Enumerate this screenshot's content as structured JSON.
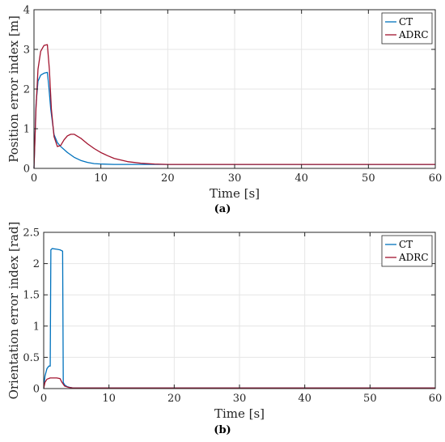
{
  "chart_data": [
    {
      "type": "line",
      "xlabel": "Time [s]",
      "ylabel": "Position error index [m]",
      "caption": "(a)",
      "xlim": [
        0,
        60
      ],
      "ylim": [
        0,
        4
      ],
      "xticks": [
        0,
        10,
        20,
        30,
        40,
        50,
        60
      ],
      "yticks": [
        0,
        1,
        2,
        3,
        4
      ],
      "grid": true,
      "legend_position": "top-right",
      "series": [
        {
          "name": "CT",
          "color": "#0072bd",
          "x": [
            0,
            0.3,
            0.6,
            1.0,
            1.5,
            2.0,
            2.2,
            2.5,
            3.0,
            3.5,
            4.0,
            5.0,
            6.0,
            7.0,
            8.0,
            9.0,
            10.0,
            12.0,
            15.0,
            18.0,
            20.0,
            30.0,
            40.0,
            50.0,
            60.0
          ],
          "y": [
            0,
            1.6,
            2.2,
            2.35,
            2.4,
            2.42,
            2.1,
            1.5,
            0.85,
            0.65,
            0.55,
            0.4,
            0.28,
            0.2,
            0.15,
            0.12,
            0.11,
            0.1,
            0.1,
            0.1,
            0.1,
            0.1,
            0.1,
            0.1,
            0.1
          ]
        },
        {
          "name": "ADRC",
          "color": "#a2142f",
          "x": [
            0,
            0.3,
            0.6,
            1.0,
            1.5,
            2.0,
            2.3,
            2.6,
            3.0,
            3.5,
            4.0,
            4.5,
            5.0,
            5.5,
            6.0,
            7.0,
            8.0,
            9.0,
            10.0,
            11.0,
            12.0,
            14.0,
            16.0,
            18.0,
            20.0,
            30.0,
            40.0,
            50.0,
            60.0
          ],
          "y": [
            0,
            1.5,
            2.5,
            2.95,
            3.1,
            3.12,
            2.5,
            1.5,
            0.8,
            0.55,
            0.58,
            0.72,
            0.82,
            0.86,
            0.86,
            0.76,
            0.62,
            0.5,
            0.4,
            0.32,
            0.25,
            0.17,
            0.13,
            0.11,
            0.1,
            0.1,
            0.1,
            0.1,
            0.1
          ]
        }
      ]
    },
    {
      "type": "line",
      "xlabel": "Time [s]",
      "ylabel": "Orientation error index [rad]",
      "caption": "(b)",
      "xlim": [
        0,
        60
      ],
      "ylim": [
        0,
        2.5
      ],
      "xticks": [
        0,
        10,
        20,
        30,
        40,
        50,
        60
      ],
      "yticks": [
        0,
        0.5,
        1,
        1.5,
        2,
        2.5
      ],
      "grid": true,
      "legend_position": "top-right",
      "series": [
        {
          "name": "CT",
          "color": "#0072bd",
          "x": [
            0,
            0.2,
            0.5,
            0.8,
            1.0,
            1.1,
            1.3,
            2.0,
            2.5,
            2.9,
            3.0,
            3.2,
            3.6,
            4.0,
            4.5,
            5.0,
            60.0
          ],
          "y": [
            0,
            0.2,
            0.32,
            0.36,
            0.36,
            2.22,
            2.24,
            2.23,
            2.22,
            2.2,
            0.1,
            0.06,
            0.03,
            0.02,
            0.01,
            0.01,
            0.01
          ]
        },
        {
          "name": "ADRC",
          "color": "#a2142f",
          "x": [
            0,
            0.2,
            0.5,
            1.0,
            1.5,
            2.0,
            2.5,
            2.8,
            3.2,
            3.8,
            4.5,
            60.0
          ],
          "y": [
            0,
            0.1,
            0.15,
            0.17,
            0.17,
            0.17,
            0.16,
            0.1,
            0.04,
            0.02,
            0.01,
            0.01
          ]
        }
      ]
    }
  ]
}
